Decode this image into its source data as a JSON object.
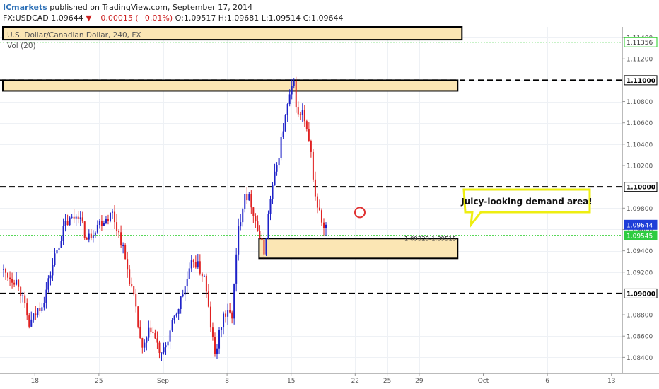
{
  "header": {
    "brand": "ICmarkets",
    "published": "published on TradingView.com, September 17, 2014",
    "symbol": "FX:USDCAD",
    "last": "1.09644",
    "change": "▼ −0.00015 (−0.01%)",
    "ohlc": "O:1.09517 H:1.09681 L:1.09514 C:1.09644"
  },
  "chart_title": "U.S. Dollar/Canadian Dollar, 240, FX",
  "volume_label": "Vol (20)",
  "callout_text": "Juicy-looking demand area!",
  "zone_label": "1.09329-1.09515",
  "colors": {
    "up": "#1e22c8",
    "down": "#e02121",
    "zone_fill": "#fbe6b4",
    "green_line": "#22cc22",
    "callout_border": "#eeee11",
    "circle": "#e03131"
  },
  "chart_data": {
    "type": "candlestick",
    "ylim": [
      1.0825,
      1.115
    ],
    "y_ticks": [
      "1.11400",
      "1.11200",
      "1.11000",
      "1.10800",
      "1.10600",
      "1.10400",
      "1.10200",
      "1.10000",
      "1.09800",
      "1.09600",
      "1.09400",
      "1.09200",
      "1.09000",
      "1.08800",
      "1.08600",
      "1.08400"
    ],
    "x_ticks": [
      {
        "label": "18",
        "bar": 15
      },
      {
        "label": "25",
        "bar": 45
      },
      {
        "label": "Sep",
        "bar": 75
      },
      {
        "label": "8",
        "bar": 105
      },
      {
        "label": "15",
        "bar": 135
      },
      {
        "label": "22",
        "bar": 165
      },
      {
        "label": "25",
        "bar": 180
      },
      {
        "label": "29",
        "bar": 195
      },
      {
        "label": "Oct",
        "bar": 225
      },
      {
        "label": "6",
        "bar": 255
      },
      {
        "label": "13",
        "bar": 285
      }
    ],
    "price_labels": [
      {
        "value": 1.11356,
        "text": "1.11356",
        "style": "green"
      },
      {
        "value": 1.11,
        "text": "1.11000",
        "style": "black"
      },
      {
        "value": 1.1,
        "text": "1.10000",
        "style": "black"
      },
      {
        "value": 1.09644,
        "text": "1.09644",
        "style": "blue"
      },
      {
        "value": 1.09545,
        "text": "1.09545",
        "style": "green"
      },
      {
        "value": 1.09,
        "text": "1.09000",
        "style": "black"
      }
    ],
    "horizontal_lines": [
      {
        "value": 1.11356,
        "style": "green-dotted"
      },
      {
        "value": 1.11,
        "style": "black-dashed"
      },
      {
        "value": 1.1,
        "style": "black-dashed"
      },
      {
        "value": 1.09,
        "style": "black-dashed"
      },
      {
        "value": 1.09545,
        "style": "green-dotted"
      }
    ],
    "zones": [
      {
        "top": 1.115,
        "bottom": 1.1138,
        "from_bar": 0,
        "to_bar": 215
      },
      {
        "top": 1.11,
        "bottom": 1.109,
        "from_bar": 0,
        "to_bar": 213
      },
      {
        "top": 1.09515,
        "bottom": 1.09329,
        "from_bar": 120,
        "to_bar": 213
      }
    ],
    "waypoints": [
      [
        0,
        1.0922
      ],
      [
        8,
        1.091
      ],
      [
        13,
        1.087
      ],
      [
        20,
        1.0895
      ],
      [
        25,
        1.0935
      ],
      [
        30,
        1.0965
      ],
      [
        36,
        1.0975
      ],
      [
        40,
        1.095
      ],
      [
        45,
        1.0965
      ],
      [
        52,
        1.0975
      ],
      [
        56,
        1.095
      ],
      [
        62,
        1.0895
      ],
      [
        66,
        1.0845
      ],
      [
        70,
        1.0868
      ],
      [
        75,
        1.084
      ],
      [
        80,
        1.087
      ],
      [
        85,
        1.09
      ],
      [
        90,
        1.0932
      ],
      [
        95,
        1.0915
      ],
      [
        98,
        1.087
      ],
      [
        100,
        1.0842
      ],
      [
        104,
        1.088
      ],
      [
        108,
        1.088
      ],
      [
        111,
        1.096
      ],
      [
        114,
        1.0995
      ],
      [
        117,
        1.0985
      ],
      [
        120,
        1.096
      ],
      [
        123,
        1.0938
      ],
      [
        126,
        1.099
      ],
      [
        129,
        1.102
      ],
      [
        132,
        1.1055
      ],
      [
        135,
        1.1085
      ],
      [
        137,
        1.1095
      ],
      [
        139,
        1.1065
      ],
      [
        141,
        1.107
      ],
      [
        143,
        1.105
      ],
      [
        145,
        1.103
      ],
      [
        147,
        1.099
      ],
      [
        149,
        1.0975
      ],
      [
        151,
        1.096
      ]
    ],
    "volatility": 0.0011
  }
}
